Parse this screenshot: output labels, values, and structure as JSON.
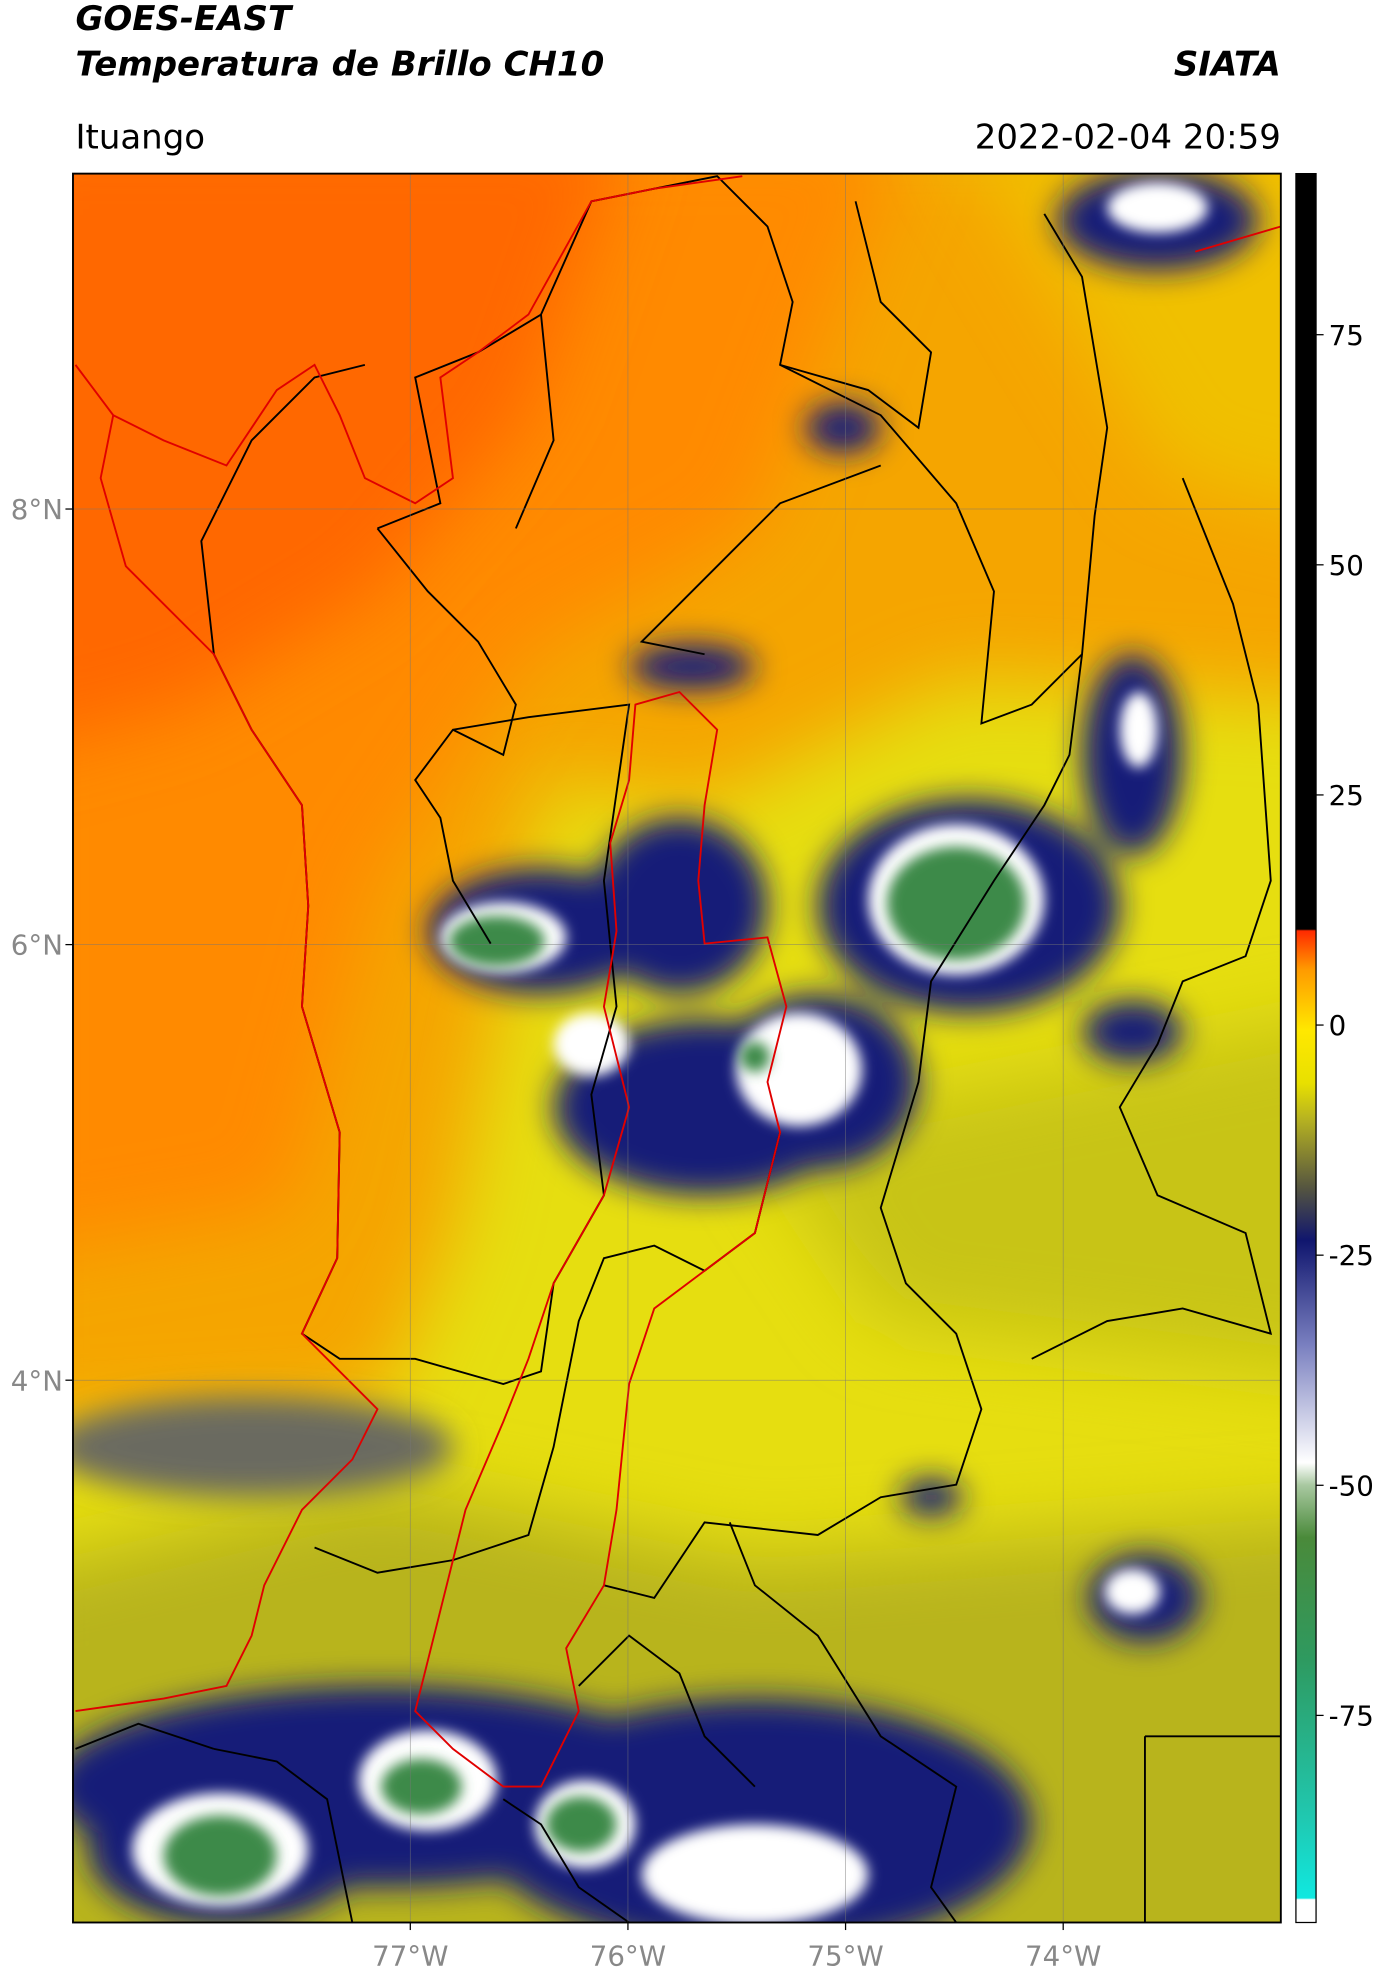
{
  "header": {
    "title": "GOES-EAST",
    "subtitle": "Temperatura de Brillo CH10",
    "brand": "SIATA",
    "location": "Ituango",
    "timestamp": "2022-02-04 20:59"
  },
  "map": {
    "xlim": [
      -78.55,
      -73.0
    ],
    "ylim": [
      1.51,
      9.54
    ],
    "xticks": [
      {
        "value": -77,
        "label": "77°W"
      },
      {
        "value": -76,
        "label": "76°W"
      },
      {
        "value": -75,
        "label": "75°W"
      },
      {
        "value": -74,
        "label": "74°W"
      }
    ],
    "yticks": [
      {
        "value": 8,
        "label": "8°N"
      },
      {
        "value": 6,
        "label": "6°N"
      },
      {
        "value": 4,
        "label": "4°N"
      }
    ],
    "grid": true
  },
  "colorbar": {
    "lim": [
      -97.5,
      92.5
    ],
    "ticks": [
      75,
      50,
      25,
      0,
      -25,
      -50,
      -75
    ]
  }
}
